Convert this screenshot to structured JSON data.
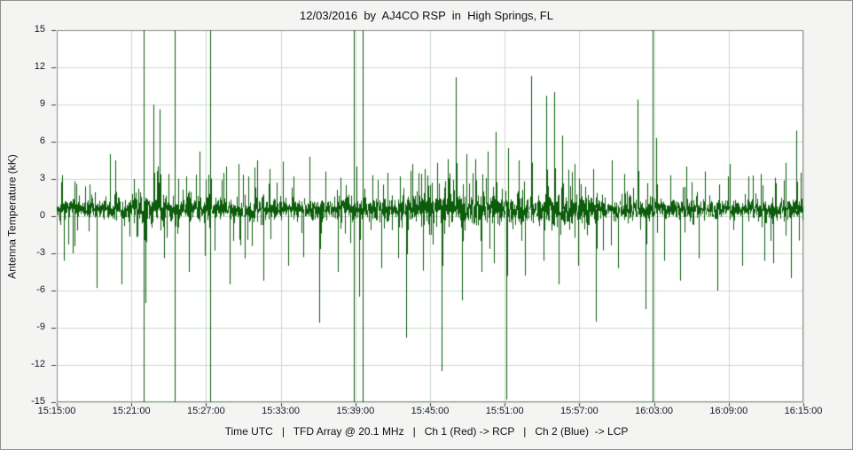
{
  "page": {
    "background": "#f4f4f2"
  },
  "chart_data": {
    "type": "line",
    "title": "12/03/2016  by  AJ4CO RSP  in  High Springs, FL",
    "ylabel": "Antenna Temperature (kK)",
    "xlabel": "Time UTC   |   TFD Array @ 20.1 MHz   |   Ch 1 (Red) -> RCP   |   Ch 2 (Blue)  -> LCP",
    "x_ticks": [
      "15:15:00",
      "15:21:00",
      "15:27:00",
      "15:33:00",
      "15:39:00",
      "15:45:00",
      "15:51:00",
      "15:57:00",
      "16:03:00",
      "16:09:00",
      "16:15:00"
    ],
    "y_ticks": [
      15,
      12,
      9,
      6,
      3,
      0,
      -3,
      -6,
      -9,
      -12,
      -15
    ],
    "ylim": [
      -15,
      15
    ],
    "x_range_minutes": [
      0,
      60
    ],
    "grid": true,
    "legend_position": "none",
    "line_color": "#0b5c0b",
    "grid_color": "#ccdccc",
    "frame_color": "#8c8c8c",
    "tick_mark_color": "#404040",
    "label_color": "#16162c",
    "plot_background": "#ffffff",
    "series": [
      {
        "name": "Antenna Temperature",
        "color": "#0b5c0b",
        "description": "dense noise band near 0.5 kK with impulsive spikes"
      }
    ],
    "synthesis": {
      "seed": 20161203,
      "baseline": 0.55,
      "noise_amplitude": 0.42,
      "subsamples": 4,
      "tail_prob": 0.05,
      "tail_scale": 2.0,
      "active_regions": [
        {
          "start": 4.5,
          "end": 13,
          "amp_factor": 1.25,
          "tail_factor": 1.3
        },
        {
          "start": 28,
          "end": 43.5,
          "amp_factor": 1.5,
          "tail_factor": 1.8
        }
      ]
    },
    "spikes": [
      [
        0.4,
        3.3
      ],
      [
        0.6,
        -3.6
      ],
      [
        1.3,
        -3.0
      ],
      [
        1.6,
        2.6
      ],
      [
        2.3,
        2.4
      ],
      [
        3.2,
        -5.8
      ],
      [
        4.3,
        5.0
      ],
      [
        4.7,
        4.5
      ],
      [
        5.2,
        -5.5
      ],
      [
        6.2,
        3.0
      ],
      [
        7.1,
        -7.0
      ],
      [
        7.8,
        9.0
      ],
      [
        8.3,
        8.6
      ],
      [
        8.6,
        -3.4
      ],
      [
        9.0,
        3.4
      ],
      [
        10.4,
        3.2
      ],
      [
        10.6,
        -4.5
      ],
      [
        11.5,
        5.2
      ],
      [
        11.9,
        -3.2
      ],
      [
        12.3,
        7.6
      ],
      [
        13.6,
        4.0
      ],
      [
        13.9,
        -5.5
      ],
      [
        14.6,
        4.2
      ],
      [
        15.1,
        -3.4
      ],
      [
        15.4,
        3.2
      ],
      [
        16.1,
        4.5
      ],
      [
        16.6,
        -5.2
      ],
      [
        17.1,
        3.8
      ],
      [
        18.2,
        4.4
      ],
      [
        18.6,
        -4.0
      ],
      [
        19.0,
        3.2
      ],
      [
        19.8,
        -3.3
      ],
      [
        20.3,
        4.8
      ],
      [
        21.1,
        -8.6
      ],
      [
        21.6,
        3.6
      ],
      [
        22.6,
        -4.5
      ],
      [
        22.8,
        3.1
      ],
      [
        24.1,
        4.0
      ],
      [
        24.3,
        -6.5
      ],
      [
        25.4,
        3.3
      ],
      [
        26.1,
        -4.2
      ],
      [
        26.6,
        3.5
      ],
      [
        27.4,
        -3.4
      ],
      [
        27.6,
        3.2
      ],
      [
        28.1,
        -9.8
      ],
      [
        28.6,
        4.2
      ],
      [
        29.4,
        -4.4
      ],
      [
        29.6,
        3.8
      ],
      [
        30.6,
        4.3
      ],
      [
        30.9,
        -12.5
      ],
      [
        31.4,
        4.6
      ],
      [
        32.1,
        11.2
      ],
      [
        32.6,
        -6.8
      ],
      [
        32.9,
        5.0
      ],
      [
        33.6,
        4.6
      ],
      [
        34.1,
        -4.5
      ],
      [
        34.6,
        5.2
      ],
      [
        35.1,
        -3.8
      ],
      [
        35.3,
        6.8
      ],
      [
        36.1,
        -14.8
      ],
      [
        36.3,
        5.5
      ],
      [
        37.1,
        4.5
      ],
      [
        37.6,
        -4.8
      ],
      [
        38.1,
        11.3
      ],
      [
        39.1,
        -3.6
      ],
      [
        39.3,
        9.7
      ],
      [
        40.0,
        10.0
      ],
      [
        40.3,
        -5.5
      ],
      [
        40.6,
        6.5
      ],
      [
        41.6,
        4.2
      ],
      [
        41.9,
        -4.0
      ],
      [
        43.1,
        3.8
      ],
      [
        43.3,
        -8.5
      ],
      [
        44.6,
        4.5
      ],
      [
        45.1,
        -4.2
      ],
      [
        45.6,
        3.4
      ],
      [
        46.7,
        9.4
      ],
      [
        47.3,
        -7.5
      ],
      [
        48.2,
        6.3
      ],
      [
        48.8,
        -3.6
      ],
      [
        49.3,
        3.3
      ],
      [
        50.1,
        -5.2
      ],
      [
        50.6,
        4.0
      ],
      [
        51.6,
        -3.4
      ],
      [
        52.1,
        3.6
      ],
      [
        53.1,
        -6.0
      ],
      [
        54.1,
        4.2
      ],
      [
        55.1,
        -4.0
      ],
      [
        55.6,
        3.2
      ],
      [
        56.6,
        3.4
      ],
      [
        56.9,
        -3.6
      ],
      [
        57.6,
        -3.8
      ],
      [
        57.7,
        3.1
      ],
      [
        58.6,
        4.3
      ],
      [
        59.0,
        -5.0
      ],
      [
        59.4,
        6.9
      ],
      [
        59.8,
        3.4
      ]
    ],
    "full_scale_events": [
      7.0,
      9.5,
      12.3,
      23.9,
      24.6,
      47.9
    ]
  }
}
